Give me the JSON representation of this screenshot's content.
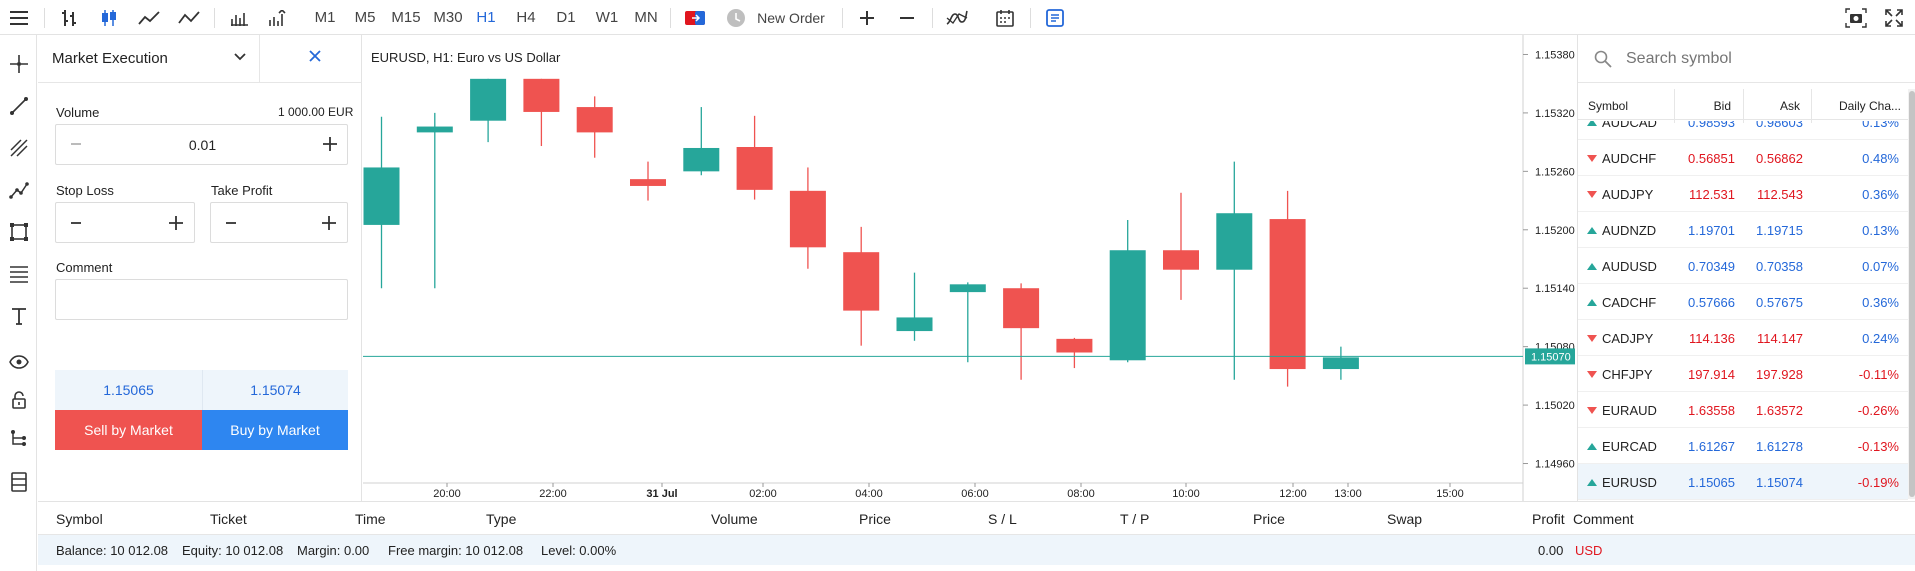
{
  "toolbar": {
    "timeframes": [
      "M1",
      "M5",
      "M15",
      "M30",
      "H1",
      "H4",
      "D1",
      "W1",
      "MN"
    ],
    "active_timeframe": "H1",
    "new_order_label": "New Order"
  },
  "order_panel": {
    "title": "Market Execution",
    "volume_label": "Volume",
    "volume_value_right": "1 000.00 EUR",
    "volume": "0.01",
    "stop_loss_label": "Stop Loss",
    "take_profit_label": "Take Profit",
    "comment_label": "Comment",
    "sell_price": "1.15065",
    "buy_price": "1.15074",
    "sell_button": "Sell by Market",
    "buy_button": "Buy by Market"
  },
  "chart": {
    "title": "EURUSD, H1: Euro vs US Dollar",
    "current_price_label": "1.15070",
    "price_ticks": [
      "1.15380",
      "1.15320",
      "1.15260",
      "1.15200",
      "1.15140",
      "1.15080",
      "1.15020",
      "1.14960"
    ],
    "time_ticks": [
      "20:00",
      "22:00",
      "31 Jul",
      "02:00",
      "04:00",
      "06:00",
      "08:00",
      "10:00",
      "12:00",
      "13:00",
      "15:00"
    ]
  },
  "chart_data": {
    "type": "candlestick",
    "title": "EURUSD, H1: Euro vs US Dollar",
    "ylim": [
      1.1494,
      1.154
    ],
    "current_price": 1.1507,
    "candles": [
      {
        "o": 1.15205,
        "h": 1.15316,
        "l": 1.1514,
        "c": 1.15264
      },
      {
        "o": 1.153,
        "h": 1.1532,
        "l": 1.1514,
        "c": 1.15306
      },
      {
        "o": 1.15312,
        "h": 1.15355,
        "l": 1.1529,
        "c": 1.15355
      },
      {
        "o": 1.15355,
        "h": 1.15355,
        "l": 1.15286,
        "c": 1.15321
      },
      {
        "o": 1.15326,
        "h": 1.15337,
        "l": 1.15274,
        "c": 1.153
      },
      {
        "o": 1.15252,
        "h": 1.1527,
        "l": 1.1523,
        "c": 1.15245
      },
      {
        "o": 1.1526,
        "h": 1.15326,
        "l": 1.15256,
        "c": 1.15284
      },
      {
        "o": 1.15285,
        "h": 1.15317,
        "l": 1.15231,
        "c": 1.15241
      },
      {
        "o": 1.1524,
        "h": 1.15264,
        "l": 1.1516,
        "c": 1.15182
      },
      {
        "o": 1.15177,
        "h": 1.15203,
        "l": 1.15081,
        "c": 1.15117
      },
      {
        "o": 1.15096,
        "h": 1.15156,
        "l": 1.15086,
        "c": 1.1511
      },
      {
        "o": 1.15136,
        "h": 1.15146,
        "l": 1.15064,
        "c": 1.15144
      },
      {
        "o": 1.1514,
        "h": 1.15145,
        "l": 1.15046,
        "c": 1.15099
      },
      {
        "o": 1.15088,
        "h": 1.15089,
        "l": 1.15058,
        "c": 1.15074
      },
      {
        "o": 1.15066,
        "h": 1.1521,
        "l": 1.15064,
        "c": 1.15179
      },
      {
        "o": 1.15179,
        "h": 1.15238,
        "l": 1.15128,
        "c": 1.15159
      },
      {
        "o": 1.15159,
        "h": 1.1527,
        "l": 1.15046,
        "c": 1.15217
      },
      {
        "o": 1.15211,
        "h": 1.1524,
        "l": 1.15039,
        "c": 1.15057
      },
      {
        "o": 1.15057,
        "h": 1.1508,
        "l": 1.15046,
        "c": 1.15069
      }
    ]
  },
  "market_watch": {
    "search_placeholder": "Search symbol",
    "columns": [
      "Symbol",
      "Bid",
      "Ask",
      "Daily Cha..."
    ],
    "rows": [
      {
        "symbol": "AUDCAD",
        "bid": "0.98593",
        "ask": "0.98603",
        "change": "0.13%",
        "dir": "up"
      },
      {
        "symbol": "AUDCHF",
        "bid": "0.56851",
        "ask": "0.56862",
        "change": "0.48%",
        "dir": "down"
      },
      {
        "symbol": "AUDJPY",
        "bid": "112.531",
        "ask": "112.543",
        "change": "0.36%",
        "dir": "down"
      },
      {
        "symbol": "AUDNZD",
        "bid": "1.19701",
        "ask": "1.19715",
        "change": "0.13%",
        "dir": "up"
      },
      {
        "symbol": "AUDUSD",
        "bid": "0.70349",
        "ask": "0.70358",
        "change": "0.07%",
        "dir": "up"
      },
      {
        "symbol": "CADCHF",
        "bid": "0.57666",
        "ask": "0.57675",
        "change": "0.36%",
        "dir": "up"
      },
      {
        "symbol": "CADJPY",
        "bid": "114.136",
        "ask": "114.147",
        "change": "0.24%",
        "dir": "down"
      },
      {
        "symbol": "CHFJPY",
        "bid": "197.914",
        "ask": "197.928",
        "change": "-0.11%",
        "dir": "down"
      },
      {
        "symbol": "EURAUD",
        "bid": "1.63558",
        "ask": "1.63572",
        "change": "-0.26%",
        "dir": "down"
      },
      {
        "symbol": "EURCAD",
        "bid": "1.61267",
        "ask": "1.61278",
        "change": "-0.13%",
        "dir": "up"
      },
      {
        "symbol": "EURUSD",
        "bid": "1.15065",
        "ask": "1.15074",
        "change": "-0.19%",
        "dir": "up"
      }
    ],
    "colors": {
      "up": "#2468d9",
      "down": "#e0161f",
      "neutral": "#222222"
    }
  },
  "positions": {
    "columns": [
      "Symbol",
      "Ticket",
      "Time",
      "Type",
      "Volume",
      "Price",
      "S / L",
      "T / P",
      "Price",
      "Swap",
      "Profit",
      "Comment"
    ],
    "balance": "Balance: 10 012.08",
    "equity": "Equity: 10 012.08",
    "margin": "Margin: 0.00",
    "free_margin": "Free margin: 10 012.08",
    "level": "Level: 0.00%",
    "profit": "0.00",
    "currency": "USD"
  },
  "colors": {
    "accent": "#2468d9",
    "sell": "#ef5350",
    "buy": "#2e86f0",
    "bull": "#26a69a",
    "bear": "#ef5350"
  }
}
